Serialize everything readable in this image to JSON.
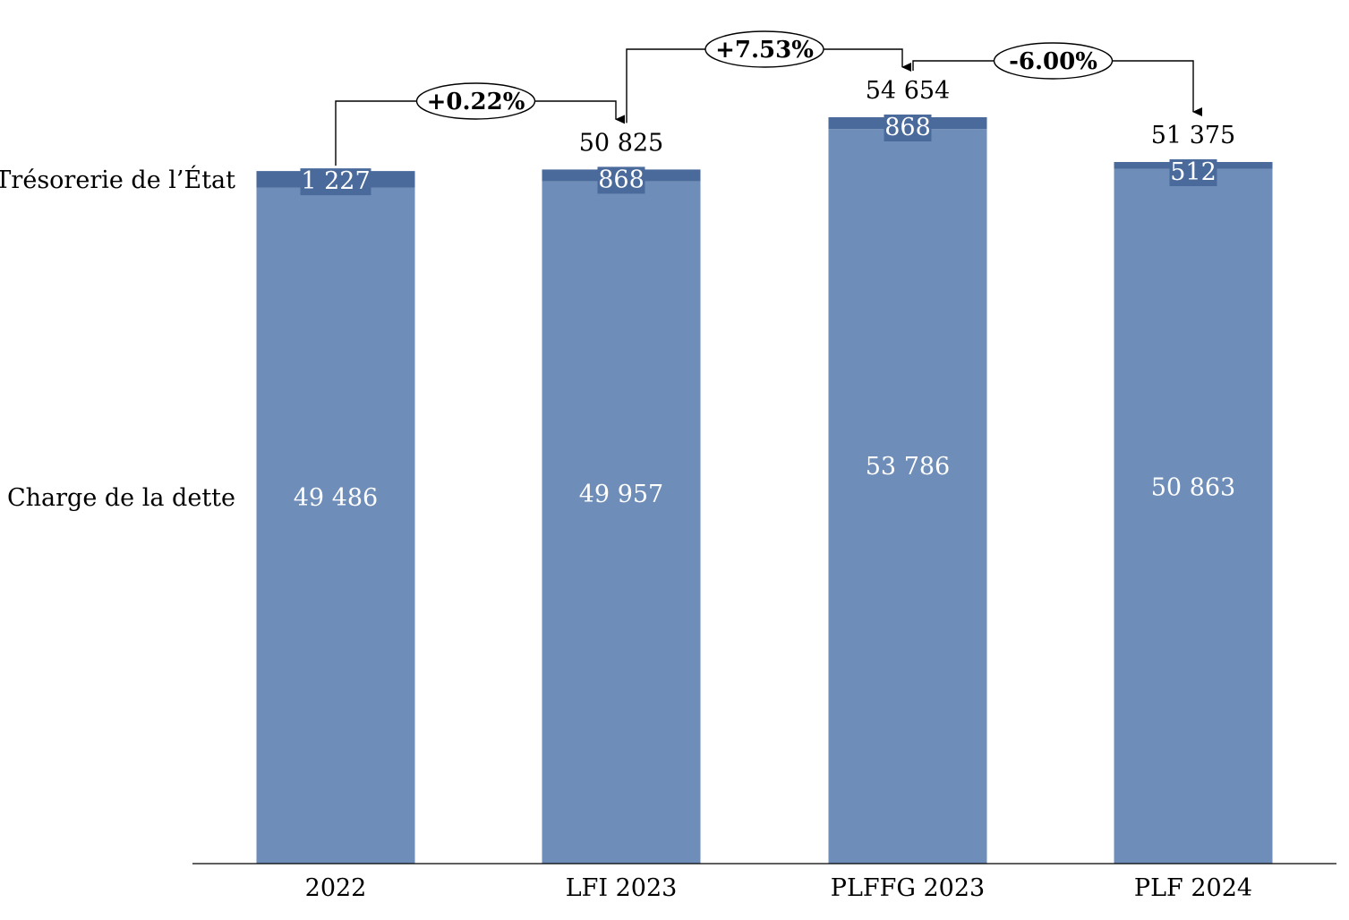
{
  "chart_data": {
    "type": "bar",
    "stacked": true,
    "categories": [
      "2022",
      "LFI 2023",
      "PLFFG 2023",
      "PLF 2024"
    ],
    "series": [
      {
        "name": "Charge de la dette",
        "values": [
          49486,
          49957,
          53786,
          50863
        ],
        "labels": [
          "49 486",
          "49 957",
          "53 786",
          "50 863"
        ],
        "color": "#6e8db8"
      },
      {
        "name": "Trésorerie de l’État",
        "values": [
          1227,
          868,
          868,
          512
        ],
        "labels": [
          "1 227",
          "868",
          "868",
          "512"
        ],
        "color": "#4a6a9c"
      }
    ],
    "totals": [
      "",
      "50 825",
      "54 654",
      "51 375"
    ],
    "changes": [
      {
        "from": 0,
        "to": 1,
        "label": "+0.22%"
      },
      {
        "from": 1,
        "to": 2,
        "label": "+7.53%"
      },
      {
        "from": 2,
        "to": 3,
        "label": "-6.00%"
      }
    ],
    "legend_placement": "left"
  }
}
